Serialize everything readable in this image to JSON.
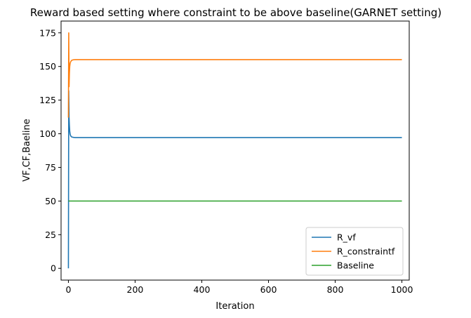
{
  "chart_data": {
    "type": "line",
    "title": "Reward based setting where constraint to be above baseline(GARNET setting)",
    "xlabel": "Iteration",
    "ylabel": "VF,CF,Baeline",
    "xlim": [
      -22,
      1022
    ],
    "ylim": [
      -8.75,
      183.75
    ],
    "xticks": [
      0,
      200,
      400,
      600,
      800,
      1000
    ],
    "yticks": [
      0,
      25,
      50,
      75,
      100,
      125,
      150,
      175
    ],
    "grid": false,
    "legend_position": "lower right",
    "series": [
      {
        "name": "R_vf",
        "color": "#1f77b4",
        "x": [
          0,
          1,
          2,
          3,
          4,
          5,
          6,
          8,
          10,
          15,
          20,
          30,
          50,
          100,
          200,
          400,
          600,
          800,
          1000
        ],
        "y": [
          0,
          132,
          112,
          106,
          102,
          100,
          99,
          98,
          97.6,
          97.3,
          97.2,
          97.2,
          97.2,
          97.2,
          97.2,
          97.2,
          97.2,
          97.2,
          97.2
        ]
      },
      {
        "name": "R_constraintf",
        "color": "#ff7f0e",
        "x": [
          0,
          1,
          2,
          3,
          4,
          5,
          6,
          8,
          10,
          15,
          20,
          30,
          50,
          100,
          200,
          400,
          600,
          800,
          1000
        ],
        "y": [
          112,
          175,
          135,
          145,
          150,
          152,
          153,
          154,
          154.6,
          155,
          155.1,
          155.1,
          155.1,
          155.1,
          155.1,
          155.1,
          155.1,
          155.1,
          155.1
        ]
      },
      {
        "name": "Baseline",
        "color": "#2ca02c",
        "x": [
          0,
          1000
        ],
        "y": [
          50,
          50
        ]
      }
    ]
  }
}
